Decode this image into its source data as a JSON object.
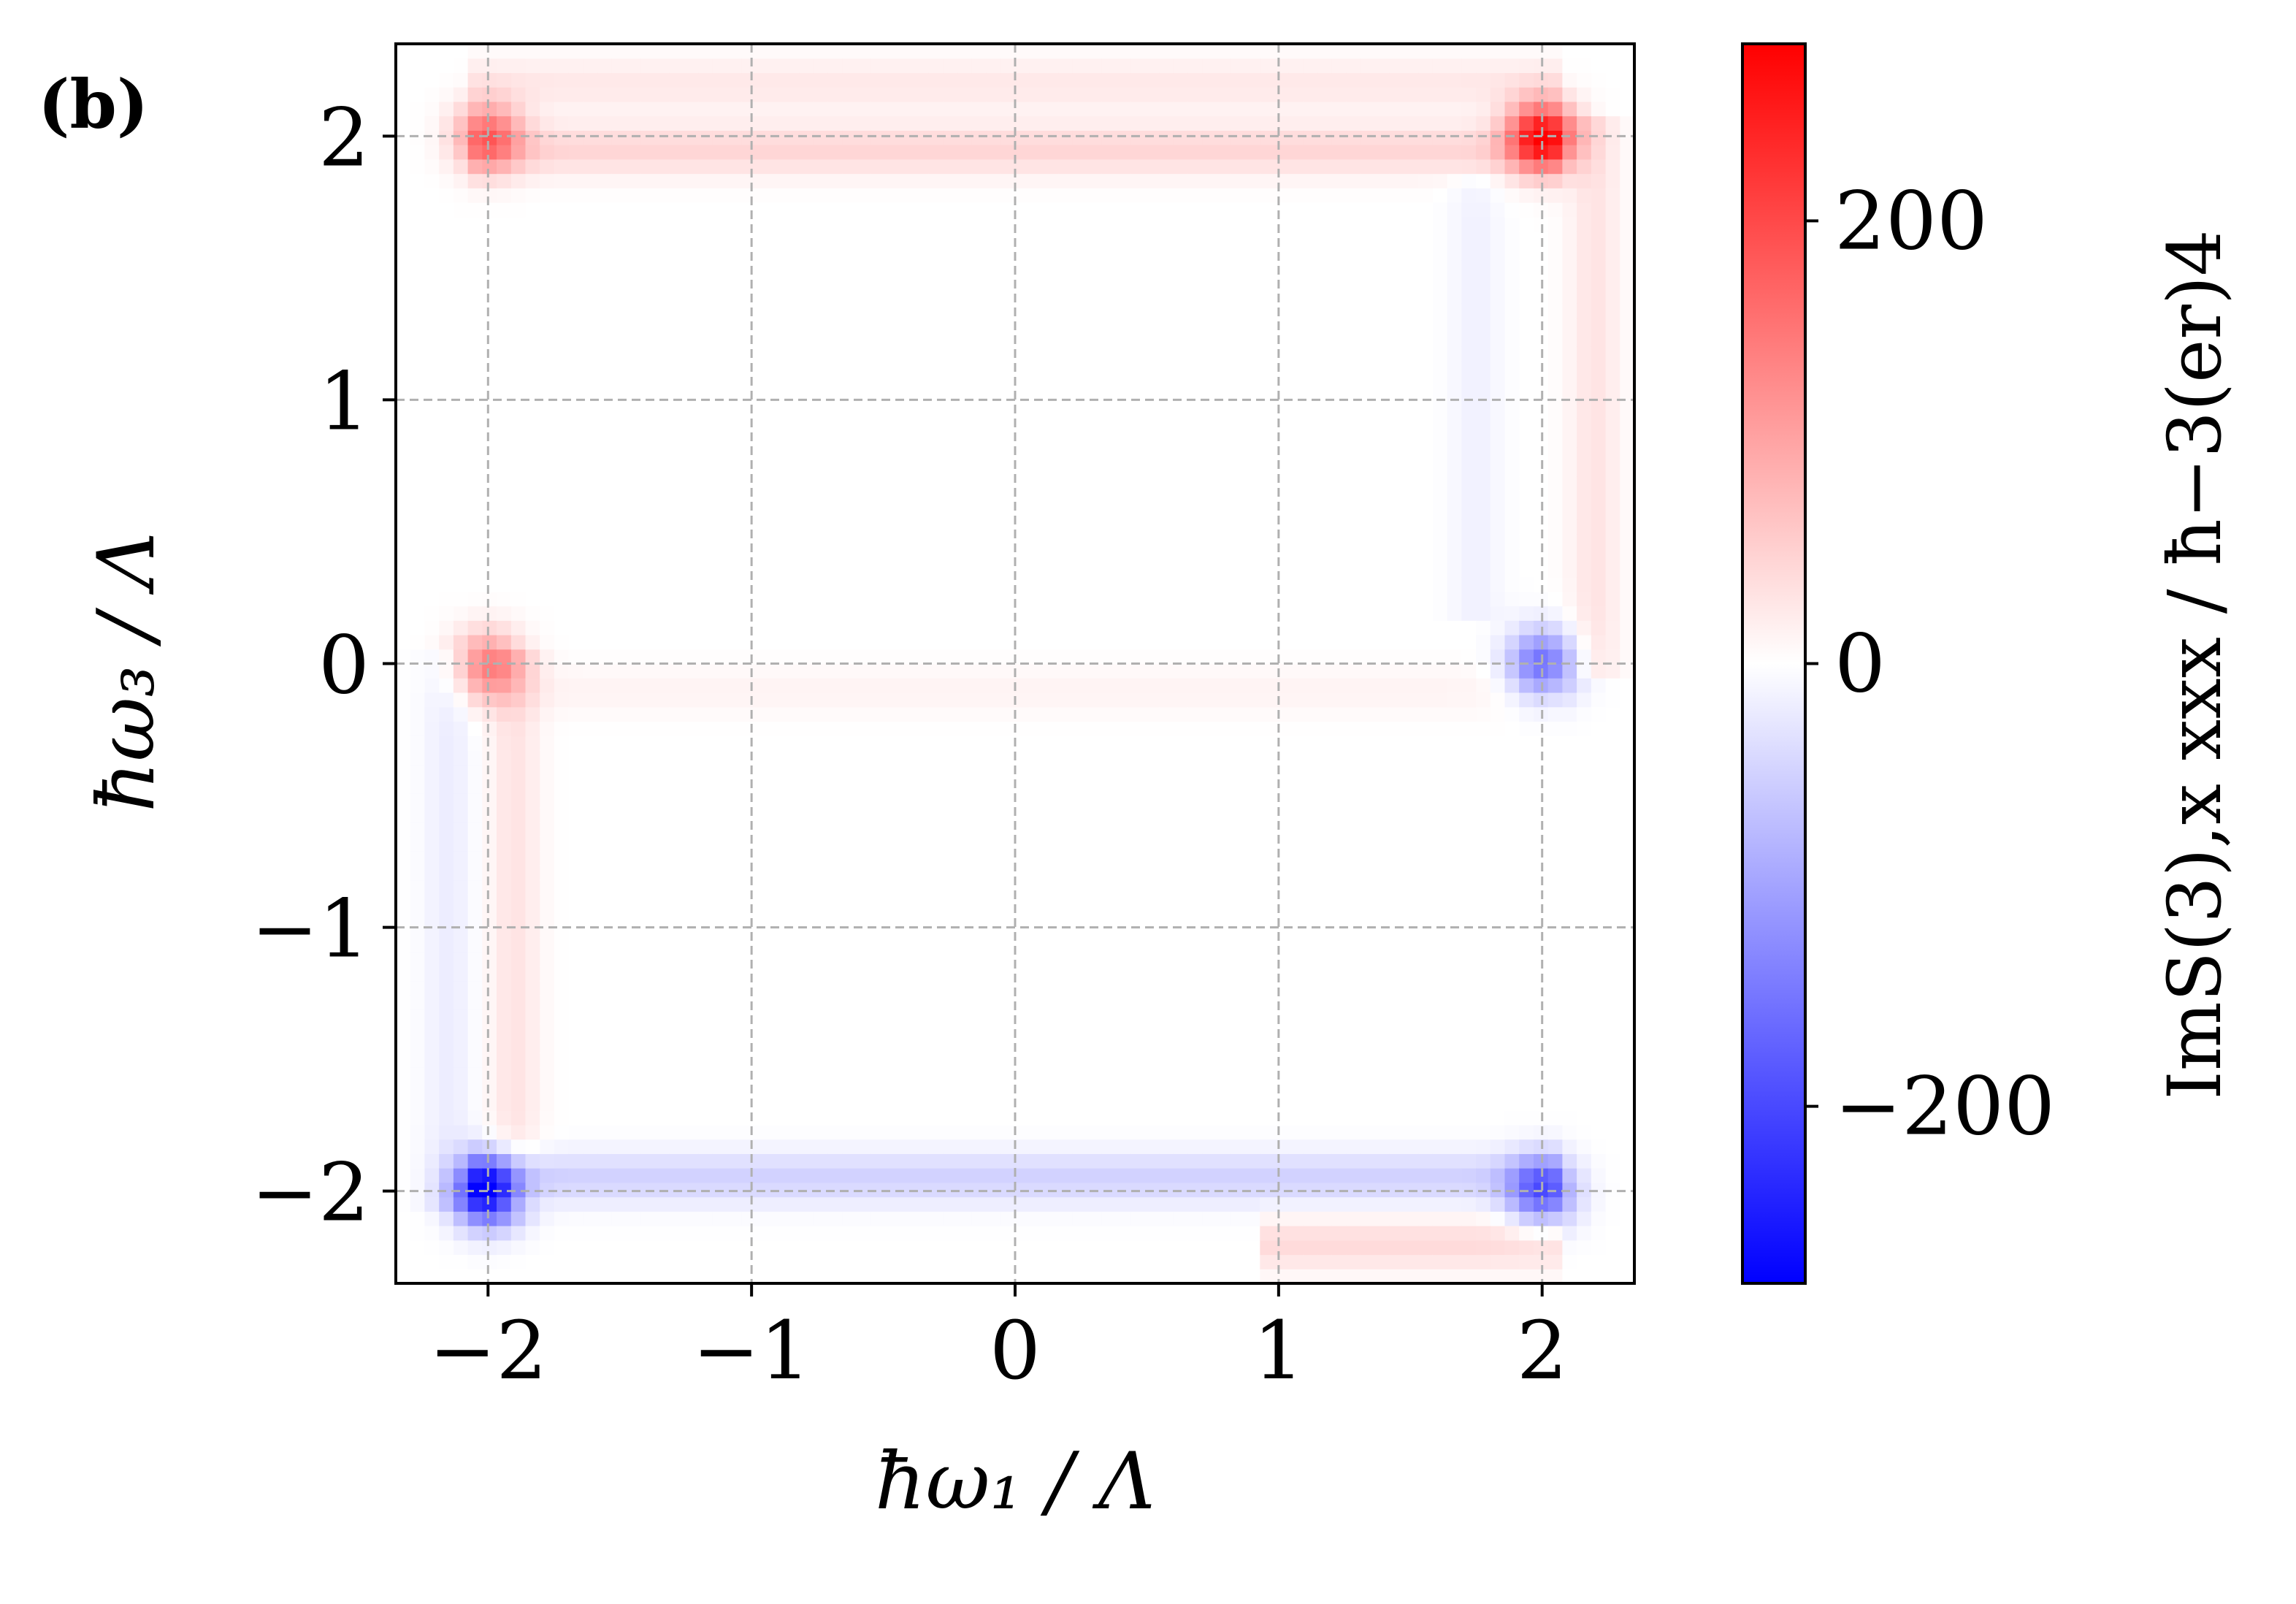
{
  "panel_label": "(b)",
  "chart_data": {
    "type": "heatmap",
    "title": "",
    "xlabel": "ħω₁ / Λ",
    "ylabel": "ħω₃ / Λ",
    "colorbar_label": "ImS(3),x xxx / ħ−3(er)4",
    "xlim": [
      -2.35,
      2.35
    ],
    "ylim": [
      -2.35,
      2.35
    ],
    "xticks": [
      -2,
      -1,
      0,
      1,
      2
    ],
    "yticks": [
      -2,
      -1,
      0,
      1,
      2
    ],
    "xtick_labels": [
      "−2",
      "−1",
      "0",
      "1",
      "2"
    ],
    "ytick_labels": [
      "−2",
      "−1",
      "0",
      "1",
      "2"
    ],
    "grid": true,
    "colormap": "bwr",
    "colorbar_range": [
      -280,
      280
    ],
    "colorbar_ticks": [
      -200,
      0,
      200
    ],
    "colorbar_tick_labels": [
      "−200",
      "0",
      "200"
    ],
    "colors": {
      "negative": "#0000ff",
      "zero": "#ffffff",
      "positive": "#ff0000",
      "grid": "#b0b0b0"
    },
    "features": [
      {
        "type": "peak",
        "x": -2.0,
        "y": 2.0,
        "value": 150
      },
      {
        "type": "peak",
        "x": 2.0,
        "y": 2.0,
        "value": 260
      },
      {
        "type": "peak",
        "x": -2.0,
        "y": 0.0,
        "value": 130
      },
      {
        "type": "peak",
        "x": 2.0,
        "y": 0.0,
        "value": -160
      },
      {
        "type": "peak",
        "x": -2.0,
        "y": -2.0,
        "value": -270
      },
      {
        "type": "peak",
        "x": 2.0,
        "y": -2.0,
        "value": -160
      },
      {
        "type": "band",
        "orientation": "horizontal",
        "at": 1.95,
        "from": -2.0,
        "to": 2.0,
        "value": 45
      },
      {
        "type": "band",
        "orientation": "horizontal",
        "at": -1.95,
        "from": -2.0,
        "to": 2.0,
        "value": -50
      },
      {
        "type": "band",
        "orientation": "horizontal",
        "at": 2.2,
        "from": -2.0,
        "to": 2.0,
        "value": 25
      },
      {
        "type": "band",
        "orientation": "horizontal",
        "at": -2.2,
        "from": 1.0,
        "to": 2.0,
        "value": 40
      },
      {
        "type": "band",
        "orientation": "vertical",
        "at": -1.9,
        "from": -2.0,
        "to": 0.0,
        "value": 30
      },
      {
        "type": "band",
        "orientation": "vertical",
        "at": -2.15,
        "from": -2.0,
        "to": 0.0,
        "value": -20
      },
      {
        "type": "band",
        "orientation": "vertical",
        "at": 2.2,
        "from": 0.0,
        "to": 2.0,
        "value": 30
      },
      {
        "type": "band",
        "orientation": "vertical",
        "at": 1.75,
        "from": 0.2,
        "to": 1.8,
        "value": -15
      },
      {
        "type": "band",
        "orientation": "horizontal",
        "at": -0.1,
        "from": -2.0,
        "to": 2.0,
        "value": 12
      }
    ]
  }
}
